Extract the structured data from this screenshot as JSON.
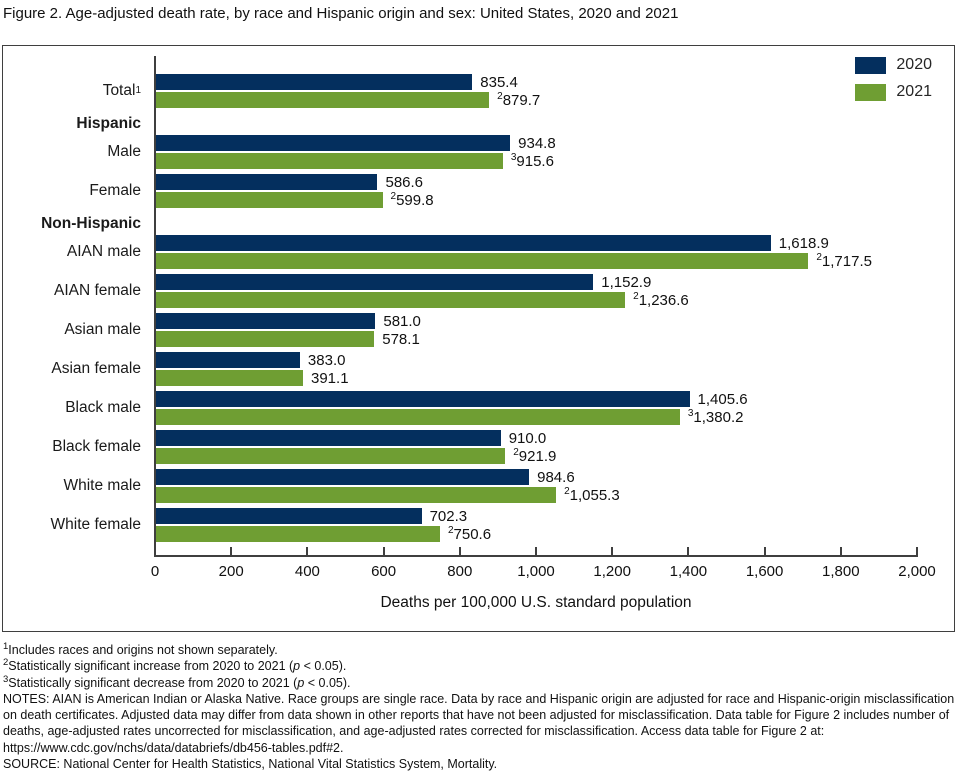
{
  "page_title": "Figure 2. Age-adjusted death rate, by race and Hispanic origin and sex: United States, 2020 and 2021",
  "legend": {
    "items": [
      {
        "label": "2020",
        "color": "#042f5e"
      },
      {
        "label": "2021",
        "color": "#6f9e33"
      }
    ]
  },
  "chart_data": {
    "type": "bar",
    "orientation": "horizontal",
    "title": "Figure 2. Age-adjusted death rate, by race and Hispanic origin and sex: United States, 2020 and 2021",
    "xlabel": "Deaths per 100,000 U.S. standard population",
    "xlim": [
      0,
      2000
    ],
    "xtick_labels": [
      "0",
      "200",
      "400",
      "600",
      "800",
      "1,000",
      "1,200",
      "1,400",
      "1,600",
      "1,800",
      "2,000"
    ],
    "grid": false,
    "legend_position": "top-right",
    "series_names": [
      "2020",
      "2021"
    ],
    "rows": [
      {
        "type": "category",
        "label": "Total",
        "label_sup": "1",
        "y2020": 835.4,
        "label2020": "835.4",
        "sup2020": "",
        "y2021": 879.7,
        "label2021": "879.7",
        "sup2021": "2"
      },
      {
        "type": "group_header",
        "label": "Hispanic"
      },
      {
        "type": "category",
        "label": "Male",
        "y2020": 934.8,
        "label2020": "934.8",
        "sup2020": "",
        "y2021": 915.6,
        "label2021": "915.6",
        "sup2021": "3"
      },
      {
        "type": "category",
        "label": "Female",
        "y2020": 586.6,
        "label2020": "586.6",
        "sup2020": "",
        "y2021": 599.8,
        "label2021": "599.8",
        "sup2021": "2"
      },
      {
        "type": "group_header",
        "label": "Non-Hispanic"
      },
      {
        "type": "category",
        "label": "AIAN male",
        "y2020": 1618.9,
        "label2020": "1,618.9",
        "sup2020": "",
        "y2021": 1717.5,
        "label2021": "1,717.5",
        "sup2021": "2"
      },
      {
        "type": "category",
        "label": "AIAN female",
        "y2020": 1152.9,
        "label2020": "1,152.9",
        "sup2020": "",
        "y2021": 1236.6,
        "label2021": "1,236.6",
        "sup2021": "2"
      },
      {
        "type": "category",
        "label": "Asian male",
        "y2020": 581.0,
        "label2020": "581.0",
        "sup2020": "",
        "y2021": 578.1,
        "label2021": "578.1",
        "sup2021": ""
      },
      {
        "type": "category",
        "label": "Asian female",
        "y2020": 383.0,
        "label2020": "383.0",
        "sup2020": "",
        "y2021": 391.1,
        "label2021": "391.1",
        "sup2021": ""
      },
      {
        "type": "category",
        "label": "Black male",
        "y2020": 1405.6,
        "label2020": "1,405.6",
        "sup2020": "",
        "y2021": 1380.2,
        "label2021": "1,380.2",
        "sup2021": "3"
      },
      {
        "type": "category",
        "label": "Black female",
        "y2020": 910.0,
        "label2020": "910.0",
        "sup2020": "",
        "y2021": 921.9,
        "label2021": "921.9",
        "sup2021": "2"
      },
      {
        "type": "category",
        "label": "White male",
        "y2020": 984.6,
        "label2020": "984.6",
        "sup2020": "",
        "y2021": 1055.3,
        "label2021": "1,055.3",
        "sup2021": "2"
      },
      {
        "type": "category",
        "label": "White female",
        "y2020": 702.3,
        "label2020": "702.3",
        "sup2020": "",
        "y2021": 750.6,
        "label2021": "750.6",
        "sup2021": "2"
      }
    ]
  },
  "footnotes": {
    "sup_lines": [
      {
        "sup": "1",
        "pre": "Includes races and origins not shown separately.",
        "italic": "",
        "post": ""
      },
      {
        "sup": "2",
        "pre": "Statistically significant increase from 2020 to 2021 (",
        "italic": "p",
        "post": " < 0.05)."
      },
      {
        "sup": "3",
        "pre": "Statistically significant decrease from 2020 to 2021 (",
        "italic": "p",
        "post": " < 0.05)."
      }
    ],
    "notes": "NOTES: AIAN is American Indian or Alaska Native. Race groups are single race. Data by race and Hispanic origin are adjusted for race and Hispanic-origin misclassification on death certificates. Adjusted data may differ from data shown in other reports that have not been adjusted for misclassification. Data table for Figure 2 includes number of deaths, age-adjusted rates uncorrected for misclassification, and age-adjusted rates corrected for misclassification. Access data table for Figure 2 at: https://www.cdc.gov/nchs/data/databriefs/db456-tables.pdf#2.",
    "source": "SOURCE: National Center for Health Statistics, National Vital Statistics System, Mortality."
  }
}
